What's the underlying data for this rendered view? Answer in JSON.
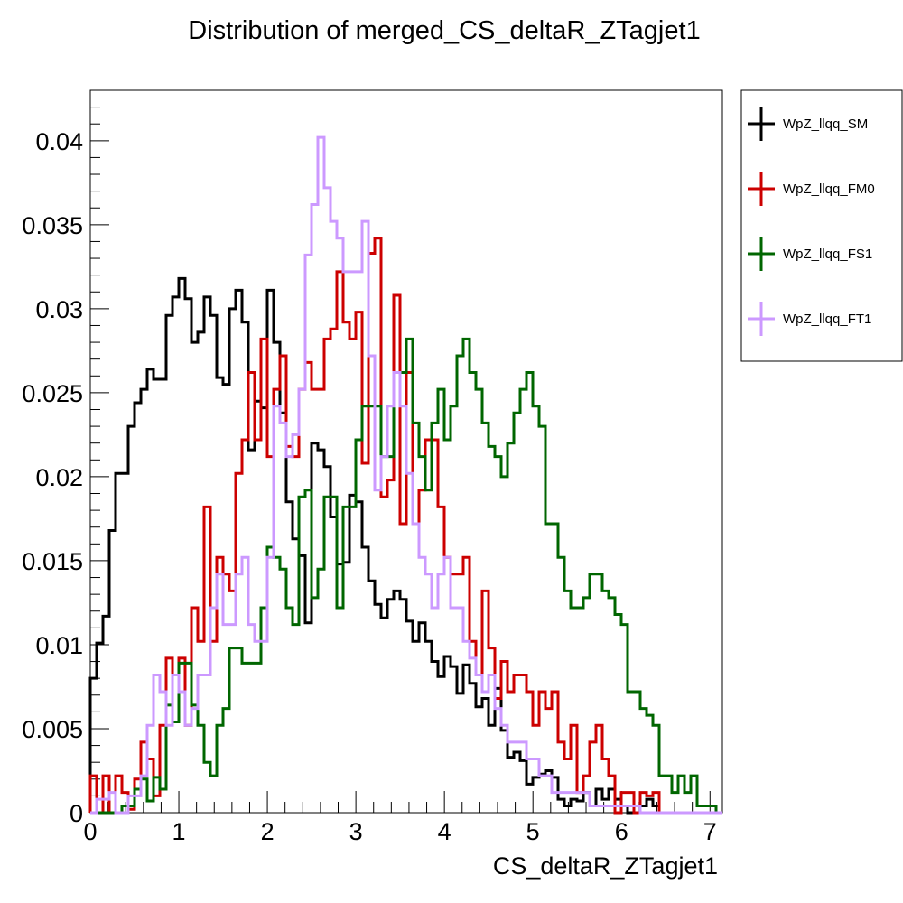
{
  "chart_data": {
    "type": "histogram",
    "title": "Distribution of merged_CS_deltaR_ZTagjet1",
    "xlabel": "CS_deltaR_ZTagjet1",
    "ylabel": "",
    "xlim": [
      0,
      7.14
    ],
    "ylim": [
      0,
      0.043
    ],
    "bin_width": 0.0714,
    "x_ticks": [
      0,
      1,
      2,
      3,
      4,
      5,
      6,
      7
    ],
    "y_ticks": [
      0,
      0.005,
      0.01,
      0.015,
      0.02,
      0.025,
      0.03,
      0.035,
      0.04
    ],
    "x_tick_labels": [
      "0",
      "1",
      "2",
      "3",
      "4",
      "5",
      "6",
      "7"
    ],
    "y_tick_labels": [
      "0",
      "0.005",
      "0.01",
      "0.015",
      "0.02",
      "0.025",
      "0.03",
      "0.035",
      "0.04"
    ],
    "legend_position": "right",
    "series": [
      {
        "name": "WpZ_llqq_SM",
        "color": "#000000",
        "values": [
          0.008,
          0.0101,
          0.0117,
          0.0168,
          0.0202,
          0.0202,
          0.023,
          0.0244,
          0.0252,
          0.0264,
          0.0258,
          0.0258,
          0.0296,
          0.0307,
          0.0318,
          0.0306,
          0.028,
          0.0286,
          0.0307,
          0.0296,
          0.0259,
          0.0255,
          0.03,
          0.0311,
          0.0292,
          0.0216,
          0.0245,
          0.0241,
          0.0311,
          0.028,
          0.0238,
          0.0185,
          0.0163,
          0.0153,
          0.0113,
          0.022,
          0.0216,
          0.0206,
          0.0176,
          0.0148,
          0.0149,
          0.0189,
          0.0185,
          0.0158,
          0.0138,
          0.0124,
          0.0116,
          0.0127,
          0.0132,
          0.0127,
          0.0114,
          0.0102,
          0.0113,
          0.0102,
          0.009,
          0.0081,
          0.0093,
          0.0087,
          0.0071,
          0.0088,
          0.0077,
          0.0063,
          0.0068,
          0.0052,
          0.0074,
          0.0049,
          0.0033,
          0.0036,
          0.0031,
          0.0017,
          0.0021,
          0.0023,
          0.0025,
          0.0021,
          0.0008,
          0.0004,
          0.0008,
          0.0007,
          0.0012,
          0.0004,
          0.0014,
          0.0008,
          0.0014,
          0.0008,
          0.0004,
          0.0,
          0.0004,
          0.0004,
          0.0008,
          0.0004,
          0.0,
          0.0,
          0.0,
          0.0,
          0.0,
          0.0,
          0.0,
          0.0,
          0.0,
          0.0
        ]
      },
      {
        "name": "WpZ_llqq_FM0",
        "color": "#cc0000",
        "values": [
          0.0022,
          0.0,
          0.0022,
          0.0,
          0.0022,
          0.0012,
          0.0002,
          0.002,
          0.0042,
          0.0032,
          0.001,
          0.0052,
          0.0092,
          0.0082,
          0.0092,
          0.0052,
          0.0122,
          0.0102,
          0.0182,
          0.0102,
          0.0152,
          0.0142,
          0.0132,
          0.0202,
          0.0222,
          0.0262,
          0.0222,
          0.0282,
          0.0212,
          0.0252,
          0.0272,
          0.0218,
          0.0212,
          0.0252,
          0.0268,
          0.0252,
          0.0252,
          0.0282,
          0.0288,
          0.0322,
          0.0292,
          0.0282,
          0.0298,
          0.0208,
          0.0333,
          0.0342,
          0.0188,
          0.0198,
          0.0308,
          0.0172,
          0.0262,
          0.0172,
          0.0192,
          0.0222,
          0.0222,
          0.0182,
          0.0152,
          0.0142,
          0.0142,
          0.0152,
          0.0102,
          0.0082,
          0.0132,
          0.0098,
          0.0068,
          0.009,
          0.0072,
          0.0082,
          0.0082,
          0.0072,
          0.0052,
          0.0072,
          0.0062,
          0.0072,
          0.0042,
          0.0032,
          0.0052,
          0.0012,
          0.0022,
          0.0042,
          0.0052,
          0.0032,
          0.0022,
          0.0,
          0.0012,
          0.0012,
          0.0,
          0.0012,
          0.001,
          0.0012,
          0.0,
          0.0,
          0.0,
          0.0,
          0.0,
          0.0,
          0.0,
          0.0,
          0.0,
          0.0
        ]
      },
      {
        "name": "WpZ_llqq_FS1",
        "color": "#006600",
        "values": [
          0.0,
          0.0,
          0.0,
          0.0,
          0.0,
          0.0004,
          0.0004,
          0.0014,
          0.002,
          0.0007,
          0.0021,
          0.0014,
          0.0064,
          0.0054,
          0.0089,
          0.0089,
          0.0064,
          0.0052,
          0.003,
          0.0022,
          0.0052,
          0.0062,
          0.0098,
          0.0098,
          0.0089,
          0.0089,
          0.0089,
          0.0122,
          0.0158,
          0.0152,
          0.0145,
          0.0122,
          0.0112,
          0.0188,
          0.0192,
          0.0128,
          0.0145,
          0.0188,
          0.0188,
          0.0122,
          0.0182,
          0.0182,
          0.0222,
          0.0242,
          0.0242,
          0.0242,
          0.0212,
          0.0212,
          0.0262,
          0.0262,
          0.0282,
          0.0232,
          0.0212,
          0.0192,
          0.0232,
          0.0252,
          0.0222,
          0.0242,
          0.0272,
          0.0282,
          0.0262,
          0.0252,
          0.0232,
          0.0218,
          0.0212,
          0.02,
          0.022,
          0.0238,
          0.0252,
          0.0262,
          0.0242,
          0.023,
          0.0172,
          0.0172,
          0.0152,
          0.0132,
          0.0122,
          0.0122,
          0.0128,
          0.0142,
          0.0142,
          0.0132,
          0.0128,
          0.0118,
          0.0112,
          0.0072,
          0.0072,
          0.0062,
          0.0058,
          0.0052,
          0.0022,
          0.0022,
          0.0012,
          0.0022,
          0.0012,
          0.0022,
          0.0004,
          0.0004,
          0.0004,
          0.0
        ]
      },
      {
        "name": "WpZ_llqq_FT1",
        "color": "#cc99ff",
        "values": [
          0.0,
          0.0008,
          0.0008,
          0.0012,
          0.0,
          0.0,
          0.001,
          0.001,
          0.0022,
          0.0052,
          0.0082,
          0.0072,
          0.0052,
          0.0082,
          0.0072,
          0.0052,
          0.0062,
          0.0082,
          0.0082,
          0.0122,
          0.0142,
          0.0112,
          0.0112,
          0.0142,
          0.0152,
          0.0112,
          0.0102,
          0.0102,
          0.0152,
          0.0242,
          0.0232,
          0.0212,
          0.0225,
          0.0252,
          0.0332,
          0.0362,
          0.0402,
          0.0372,
          0.0352,
          0.0342,
          0.0322,
          0.0322,
          0.0322,
          0.0352,
          0.0272,
          0.0192,
          0.0212,
          0.0242,
          0.0262,
          0.0242,
          0.0202,
          0.0172,
          0.0152,
          0.0142,
          0.0122,
          0.0142,
          0.0152,
          0.0122,
          0.0122,
          0.0102,
          0.0092,
          0.0082,
          0.0072,
          0.0082,
          0.0062,
          0.0052,
          0.0042,
          0.0042,
          0.0042,
          0.0032,
          0.0032,
          0.0022,
          0.0022,
          0.0012,
          0.0012,
          0.0012,
          0.0012,
          0.0012,
          0.0012,
          0.0004,
          0.0004,
          0.0004,
          0.0004,
          0.0004,
          0.0004,
          0.0004,
          0.0004,
          0.0,
          0.0,
          0.0,
          0.0,
          0.0,
          0.0,
          0.0,
          0.0,
          0.0,
          0.0,
          0.0,
          0.0,
          0.0
        ]
      }
    ]
  }
}
